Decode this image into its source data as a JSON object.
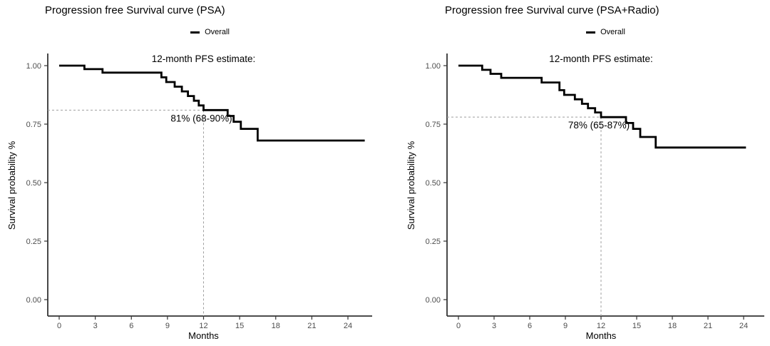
{
  "colors": {
    "curve": "#000000",
    "dashed_guide": "#9e9e9e",
    "axis": "#333333",
    "tick_label": "#4d4d4d",
    "text": "#000000",
    "background": "#ffffff"
  },
  "chart_data": [
    {
      "type": "line",
      "subtype": "kaplan-meier-step",
      "title": "Progression free Survival curve (PSA)",
      "legend": {
        "label": "Overall",
        "color": "#000000"
      },
      "xlabel": "Months",
      "ylabel": "Survival probability %",
      "x_ticks": [
        0,
        3,
        6,
        9,
        12,
        15,
        18,
        21,
        24
      ],
      "y_tick_values": [
        0,
        0.25,
        0.5,
        0.75,
        1
      ],
      "y_tick_labels": [
        "0.00",
        "0.25",
        "0.50",
        "0.75",
        "1.00"
      ],
      "xlim": [
        0,
        24
      ],
      "ylim": [
        0,
        1
      ],
      "grid": false,
      "legend_position": "top",
      "annotations": {
        "heading": "12-month PFS estimate:",
        "value_label": "81% (68-90%)",
        "estimate_month": 12,
        "estimate_probability": 0.81,
        "ci_low_pct": 68,
        "ci_high_pct": 90
      },
      "series": [
        {
          "name": "Overall",
          "color": "#000000",
          "times": [
            0,
            2.1,
            3.6,
            8.5,
            8.9,
            9.6,
            10.2,
            10.7,
            11.2,
            11.6,
            12.0,
            14.0,
            14.5,
            15.1,
            16.5
          ],
          "survival": [
            1.0,
            0.985,
            0.97,
            0.95,
            0.93,
            0.91,
            0.89,
            0.87,
            0.85,
            0.83,
            0.81,
            0.785,
            0.76,
            0.73,
            0.68
          ],
          "end_time": 25.4
        }
      ]
    },
    {
      "type": "line",
      "subtype": "kaplan-meier-step",
      "title": "Progression free Survival curve (PSA+Radio)",
      "legend": {
        "label": "Overall",
        "color": "#000000"
      },
      "xlabel": "Months",
      "ylabel": "Survival probability %",
      "x_ticks": [
        0,
        3,
        6,
        9,
        12,
        15,
        18,
        21,
        24
      ],
      "y_tick_values": [
        0,
        0.25,
        0.5,
        0.75,
        1
      ],
      "y_tick_labels": [
        "0.00",
        "0.25",
        "0.50",
        "0.75",
        "1.00"
      ],
      "xlim": [
        0,
        24
      ],
      "ylim": [
        0,
        1
      ],
      "grid": false,
      "legend_position": "top",
      "annotations": {
        "heading": "12-month PFS estimate:",
        "value_label": "78% (65-87%)",
        "estimate_month": 12,
        "estimate_probability": 0.78,
        "ci_low_pct": 65,
        "ci_high_pct": 87
      },
      "series": [
        {
          "name": "Overall",
          "color": "#000000",
          "times": [
            0,
            2.0,
            2.7,
            3.6,
            7.0,
            8.5,
            8.9,
            9.8,
            10.4,
            10.9,
            11.5,
            12.0,
            14.1,
            14.7,
            15.3,
            16.6
          ],
          "survival": [
            1.0,
            0.982,
            0.965,
            0.948,
            0.928,
            0.895,
            0.875,
            0.856,
            0.837,
            0.818,
            0.8,
            0.78,
            0.755,
            0.73,
            0.695,
            0.65
          ],
          "end_time": 24.2
        }
      ]
    }
  ]
}
